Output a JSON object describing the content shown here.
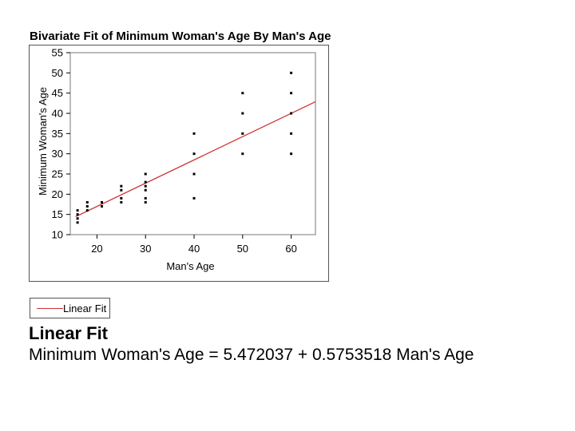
{
  "chart_data": {
    "type": "scatter",
    "title": "Bivariate Fit of Minimum Woman's Age By Man's Age",
    "xlabel": "Man's Age",
    "ylabel": "Minimum Woman's Age",
    "xlim": [
      14.5,
      65
    ],
    "ylim": [
      10,
      55
    ],
    "xticks": [
      20,
      30,
      40,
      50,
      60
    ],
    "yticks": [
      10,
      15,
      20,
      25,
      30,
      35,
      40,
      45,
      50,
      55
    ],
    "grid": false,
    "points": [
      {
        "x": 16,
        "y": 13
      },
      {
        "x": 16,
        "y": 14
      },
      {
        "x": 16,
        "y": 15
      },
      {
        "x": 16,
        "y": 16
      },
      {
        "x": 18,
        "y": 16
      },
      {
        "x": 18,
        "y": 17
      },
      {
        "x": 18,
        "y": 18
      },
      {
        "x": 21,
        "y": 17
      },
      {
        "x": 21,
        "y": 18
      },
      {
        "x": 25,
        "y": 18
      },
      {
        "x": 25,
        "y": 19
      },
      {
        "x": 25,
        "y": 21
      },
      {
        "x": 25,
        "y": 22
      },
      {
        "x": 30,
        "y": 18
      },
      {
        "x": 30,
        "y": 19
      },
      {
        "x": 30,
        "y": 21
      },
      {
        "x": 30,
        "y": 22
      },
      {
        "x": 30,
        "y": 23
      },
      {
        "x": 30,
        "y": 25
      },
      {
        "x": 40,
        "y": 19
      },
      {
        "x": 40,
        "y": 25
      },
      {
        "x": 40,
        "y": 30
      },
      {
        "x": 40,
        "y": 35
      },
      {
        "x": 50,
        "y": 30
      },
      {
        "x": 50,
        "y": 35
      },
      {
        "x": 50,
        "y": 40
      },
      {
        "x": 50,
        "y": 45
      },
      {
        "x": 60,
        "y": 30
      },
      {
        "x": 60,
        "y": 35
      },
      {
        "x": 60,
        "y": 40
      },
      {
        "x": 60,
        "y": 45
      },
      {
        "x": 60,
        "y": 50
      }
    ],
    "fit": {
      "intercept": 5.472037,
      "slope": 0.5753518,
      "color": "#cc3333"
    },
    "legend": {
      "entries": [
        "Linear Fit"
      ],
      "placement": "bottom-left"
    }
  },
  "fit_report": {
    "heading": "Linear Fit",
    "equation": "Minimum Woman's Age = 5.472037 + 0.5753518 Man's Age"
  }
}
